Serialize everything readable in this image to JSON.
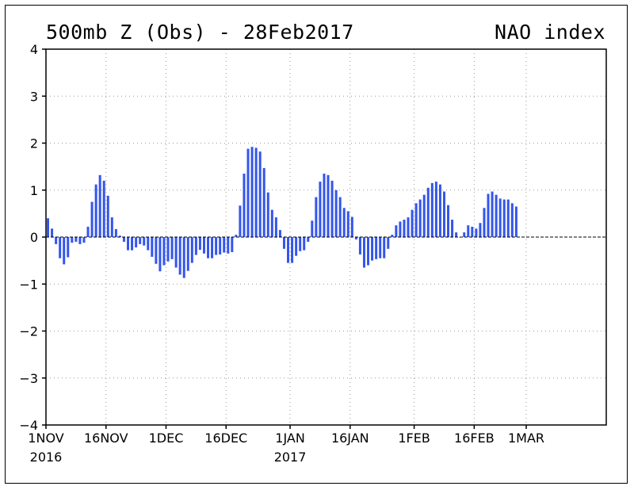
{
  "header": {
    "title": "500mb Z (Obs) - 28Feb2017",
    "index_label": "NAO index"
  },
  "chart_data": {
    "type": "bar",
    "title": "500mb Z (Obs) - 28Feb2017",
    "subtitle": "NAO index",
    "xlabel": "",
    "ylabel": "",
    "ylim": [
      -4,
      4
    ],
    "grid": true,
    "bar_color": "#3355ee",
    "start_date": "2016-11-01",
    "day_span": 120,
    "yticks": [
      "4",
      "3",
      "2",
      "1",
      "0",
      "−1",
      "−2",
      "−3",
      "−4"
    ],
    "xticks": [
      {
        "day": 0,
        "label": "1NOV",
        "year": "2016"
      },
      {
        "day": 15,
        "label": "16NOV"
      },
      {
        "day": 30,
        "label": "1DEC"
      },
      {
        "day": 45,
        "label": "16DEC"
      },
      {
        "day": 61,
        "label": "1JAN",
        "year": "2017"
      },
      {
        "day": 76,
        "label": "16JAN"
      },
      {
        "day": 92,
        "label": "1FEB"
      },
      {
        "day": 107,
        "label": "16FEB"
      },
      {
        "day": 120,
        "label": "1MAR"
      }
    ],
    "values": [
      0.4,
      0.18,
      -0.15,
      -0.45,
      -0.58,
      -0.43,
      -0.12,
      -0.1,
      -0.15,
      -0.12,
      0.22,
      0.75,
      1.12,
      1.32,
      1.2,
      0.88,
      0.42,
      0.17,
      0.03,
      -0.1,
      -0.28,
      -0.28,
      -0.22,
      -0.15,
      -0.18,
      -0.28,
      -0.42,
      -0.57,
      -0.73,
      -0.6,
      -0.52,
      -0.47,
      -0.65,
      -0.8,
      -0.87,
      -0.72,
      -0.55,
      -0.38,
      -0.27,
      -0.35,
      -0.45,
      -0.45,
      -0.38,
      -0.37,
      -0.33,
      -0.35,
      -0.32,
      0.05,
      0.67,
      1.35,
      1.88,
      1.92,
      1.9,
      1.82,
      1.47,
      0.95,
      0.58,
      0.42,
      0.15,
      -0.25,
      -0.55,
      -0.55,
      -0.4,
      -0.3,
      -0.28,
      -0.1,
      0.35,
      0.85,
      1.18,
      1.35,
      1.32,
      1.2,
      1.0,
      0.85,
      0.62,
      0.55,
      0.43,
      -0.05,
      -0.37,
      -0.65,
      -0.6,
      -0.5,
      -0.47,
      -0.45,
      -0.45,
      -0.25,
      0.05,
      0.25,
      0.33,
      0.37,
      0.42,
      0.58,
      0.72,
      0.8,
      0.9,
      1.05,
      1.15,
      1.18,
      1.12,
      0.97,
      0.68,
      0.37,
      0.1,
      0.0,
      0.1,
      0.25,
      0.22,
      0.18,
      0.3,
      0.62,
      0.92,
      0.97,
      0.9,
      0.82,
      0.8,
      0.8,
      0.72,
      0.65
    ]
  }
}
